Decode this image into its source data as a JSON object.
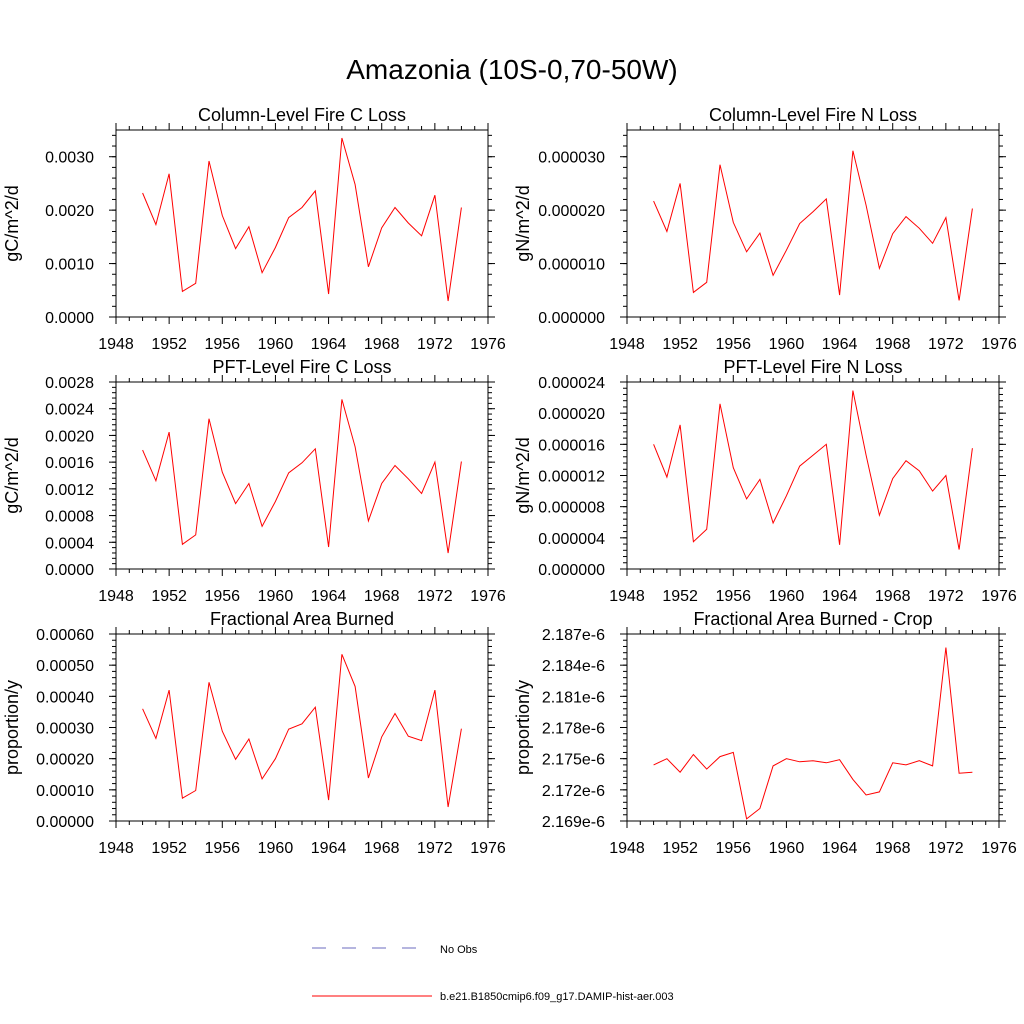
{
  "page": {
    "title": "Amazonia (10S-0,70-50W)"
  },
  "colors": {
    "model": "#ff0000",
    "obs": "#6b6bbf",
    "axis": "#000000"
  },
  "legend": {
    "obs_label": "No Obs",
    "model_label": "b.e21.B1850cmip6.f09_g17.DAMIP-hist-aer.003"
  },
  "chart_data": [
    {
      "type": "line",
      "title": "Column-Level Fire C Loss",
      "ylabel": "gC/m^2/d",
      "xlim": [
        1948,
        1976
      ],
      "ylim": [
        0,
        0.0035
      ],
      "xticks": [
        "1948",
        "1952",
        "1956",
        "1960",
        "1964",
        "1968",
        "1972",
        "1976"
      ],
      "yticks": [
        {
          "v": 0,
          "label": "0.0000"
        },
        {
          "v": 0.001,
          "label": "0.0010"
        },
        {
          "v": 0.002,
          "label": "0.0020"
        },
        {
          "v": 0.003,
          "label": "0.0030"
        }
      ],
      "x": [
        1950,
        1951,
        1952,
        1953,
        1954,
        1955,
        1956,
        1957,
        1958,
        1959,
        1960,
        1961,
        1962,
        1963,
        1964,
        1965,
        1966,
        1967,
        1968,
        1969,
        1970,
        1971,
        1972,
        1973,
        1974
      ],
      "values": [
        0.00232,
        0.00173,
        0.00268,
        0.00048,
        0.00063,
        0.00292,
        0.0019,
        0.00128,
        0.00169,
        0.00083,
        0.0013,
        0.00186,
        0.00205,
        0.00236,
        0.00043,
        0.00335,
        0.00248,
        0.00094,
        0.00167,
        0.00205,
        0.00176,
        0.00152,
        0.00228,
        0.0003,
        0.00205
      ]
    },
    {
      "type": "line",
      "title": "Column-Level Fire N Loss",
      "ylabel": "gN/m^2/d",
      "xlim": [
        1948,
        1976
      ],
      "ylim": [
        0,
        3.5e-05
      ],
      "xticks": [
        "1948",
        "1952",
        "1956",
        "1960",
        "1964",
        "1968",
        "1972",
        "1976"
      ],
      "yticks": [
        {
          "v": 0,
          "label": "0.000000"
        },
        {
          "v": 1e-05,
          "label": "0.000010"
        },
        {
          "v": 2e-05,
          "label": "0.000020"
        },
        {
          "v": 3e-05,
          "label": "0.000030"
        }
      ],
      "x": [
        1950,
        1951,
        1952,
        1953,
        1954,
        1955,
        1956,
        1957,
        1958,
        1959,
        1960,
        1961,
        1962,
        1963,
        1964,
        1965,
        1966,
        1967,
        1968,
        1969,
        1970,
        1971,
        1972,
        1973,
        1974
      ],
      "values": [
        2.17e-05,
        1.6e-05,
        2.5e-05,
        4.6e-06,
        6.5e-06,
        2.85e-05,
        1.77e-05,
        1.22e-05,
        1.57e-05,
        7.8e-06,
        1.25e-05,
        1.75e-05,
        1.97e-05,
        2.21e-05,
        4.1e-06,
        3.11e-05,
        2.09e-05,
        9.1e-06,
        1.56e-05,
        1.88e-05,
        1.66e-05,
        1.38e-05,
        1.86e-05,
        3.1e-06,
        2.03e-05
      ]
    },
    {
      "type": "line",
      "title": "PFT-Level Fire C Loss",
      "ylabel": "gC/m^2/d",
      "xlim": [
        1948,
        1976
      ],
      "ylim": [
        0,
        0.0028
      ],
      "xticks": [
        "1948",
        "1952",
        "1956",
        "1960",
        "1964",
        "1968",
        "1972",
        "1976"
      ],
      "yticks": [
        {
          "v": 0,
          "label": "0.0000"
        },
        {
          "v": 0.0004,
          "label": "0.0004"
        },
        {
          "v": 0.0008,
          "label": "0.0008"
        },
        {
          "v": 0.0012,
          "label": "0.0012"
        },
        {
          "v": 0.0016,
          "label": "0.0016"
        },
        {
          "v": 0.002,
          "label": "0.0020"
        },
        {
          "v": 0.0024,
          "label": "0.0024"
        },
        {
          "v": 0.0028,
          "label": "0.0028"
        }
      ],
      "x": [
        1950,
        1951,
        1952,
        1953,
        1954,
        1955,
        1956,
        1957,
        1958,
        1959,
        1960,
        1961,
        1962,
        1963,
        1964,
        1965,
        1966,
        1967,
        1968,
        1969,
        1970,
        1971,
        1972,
        1973,
        1974
      ],
      "values": [
        0.00178,
        0.00132,
        0.00205,
        0.00037,
        0.00051,
        0.00225,
        0.00145,
        0.00098,
        0.00128,
        0.00064,
        0.00101,
        0.00144,
        0.00159,
        0.0018,
        0.00033,
        0.00254,
        0.00183,
        0.00072,
        0.00128,
        0.00155,
        0.00135,
        0.00113,
        0.0016,
        0.00024,
        0.00161
      ]
    },
    {
      "type": "line",
      "title": "PFT-Level Fire N Loss",
      "ylabel": "gN/m^2/d",
      "xlim": [
        1948,
        1976
      ],
      "ylim": [
        0,
        2.4e-05
      ],
      "xticks": [
        "1948",
        "1952",
        "1956",
        "1960",
        "1964",
        "1968",
        "1972",
        "1976"
      ],
      "yticks": [
        {
          "v": 0,
          "label": "0.000000"
        },
        {
          "v": 4e-06,
          "label": "0.000004"
        },
        {
          "v": 8e-06,
          "label": "0.000008"
        },
        {
          "v": 1.2e-05,
          "label": "0.000012"
        },
        {
          "v": 1.6e-05,
          "label": "0.000016"
        },
        {
          "v": 2e-05,
          "label": "0.000020"
        },
        {
          "v": 2.4e-05,
          "label": "0.000024"
        }
      ],
      "x": [
        1950,
        1951,
        1952,
        1953,
        1954,
        1955,
        1956,
        1957,
        1958,
        1959,
        1960,
        1961,
        1962,
        1963,
        1964,
        1965,
        1966,
        1967,
        1968,
        1969,
        1970,
        1971,
        1972,
        1973,
        1974
      ],
      "values": [
        1.6e-05,
        1.18e-05,
        1.85e-05,
        3.5e-06,
        5.1e-06,
        2.12e-05,
        1.3e-05,
        9e-06,
        1.15e-05,
        5.9e-06,
        9.4e-06,
        1.32e-05,
        1.46e-05,
        1.6e-05,
        3.1e-06,
        2.29e-05,
        1.46e-05,
        6.9e-06,
        1.16e-05,
        1.39e-05,
        1.26e-05,
        1e-05,
        1.2e-05,
        2.5e-06,
        1.55e-05
      ]
    },
    {
      "type": "line",
      "title": "Fractional Area Burned",
      "ylabel": "proportion/y",
      "xlim": [
        1948,
        1976
      ],
      "ylim": [
        0,
        0.0006
      ],
      "xticks": [
        "1948",
        "1952",
        "1956",
        "1960",
        "1964",
        "1968",
        "1972",
        "1976"
      ],
      "yticks": [
        {
          "v": 0,
          "label": "0.00000"
        },
        {
          "v": 0.0001,
          "label": "0.00010"
        },
        {
          "v": 0.0002,
          "label": "0.00020"
        },
        {
          "v": 0.0003,
          "label": "0.00030"
        },
        {
          "v": 0.0004,
          "label": "0.00040"
        },
        {
          "v": 0.0005,
          "label": "0.00050"
        },
        {
          "v": 0.0006,
          "label": "0.00060"
        }
      ],
      "x": [
        1950,
        1951,
        1952,
        1953,
        1954,
        1955,
        1956,
        1957,
        1958,
        1959,
        1960,
        1961,
        1962,
        1963,
        1964,
        1965,
        1966,
        1967,
        1968,
        1969,
        1970,
        1971,
        1972,
        1973,
        1974
      ],
      "values": [
        0.00036,
        0.000265,
        0.00042,
        7.3e-05,
        9.8e-05,
        0.000445,
        0.000288,
        0.000198,
        0.000263,
        0.000135,
        0.0002,
        0.000295,
        0.000312,
        0.000365,
        6.7e-05,
        0.000535,
        0.000432,
        0.000138,
        0.00027,
        0.000345,
        0.000272,
        0.000258,
        0.00042,
        4.5e-05,
        0.000296
      ]
    },
    {
      "type": "line",
      "title": "Fractional Area Burned - Crop",
      "ylabel": "proportion/y",
      "xlim": [
        1948,
        1976
      ],
      "ylim": [
        2.169e-06,
        2.187e-06
      ],
      "xticks": [
        "1948",
        "1952",
        "1956",
        "1960",
        "1964",
        "1968",
        "1972",
        "1976"
      ],
      "yticks": [
        {
          "v": 2.169e-06,
          "label": "2.169e-6"
        },
        {
          "v": 2.172e-06,
          "label": "2.172e-6"
        },
        {
          "v": 2.175e-06,
          "label": "2.175e-6"
        },
        {
          "v": 2.178e-06,
          "label": "2.178e-6"
        },
        {
          "v": 2.181e-06,
          "label": "2.181e-6"
        },
        {
          "v": 2.184e-06,
          "label": "2.184e-6"
        },
        {
          "v": 2.187e-06,
          "label": "2.187e-6"
        }
      ],
      "x": [
        1950,
        1951,
        1952,
        1953,
        1954,
        1955,
        1956,
        1957,
        1958,
        1959,
        1960,
        1961,
        1962,
        1963,
        1964,
        1965,
        1966,
        1967,
        1968,
        1969,
        1970,
        1971,
        1972,
        1973,
        1974
      ],
      "values": [
        2.1744e-06,
        2.175e-06,
        2.1737e-06,
        2.1754e-06,
        2.174e-06,
        2.1752e-06,
        2.1756e-06,
        2.1692e-06,
        2.1702e-06,
        2.1743e-06,
        2.175e-06,
        2.1747e-06,
        2.1748e-06,
        2.1746e-06,
        2.1749e-06,
        2.173e-06,
        2.1715e-06,
        2.1718e-06,
        2.1746e-06,
        2.1744e-06,
        2.1748e-06,
        2.1743e-06,
        2.1857e-06,
        2.1736e-06,
        2.1737e-06
      ]
    }
  ]
}
